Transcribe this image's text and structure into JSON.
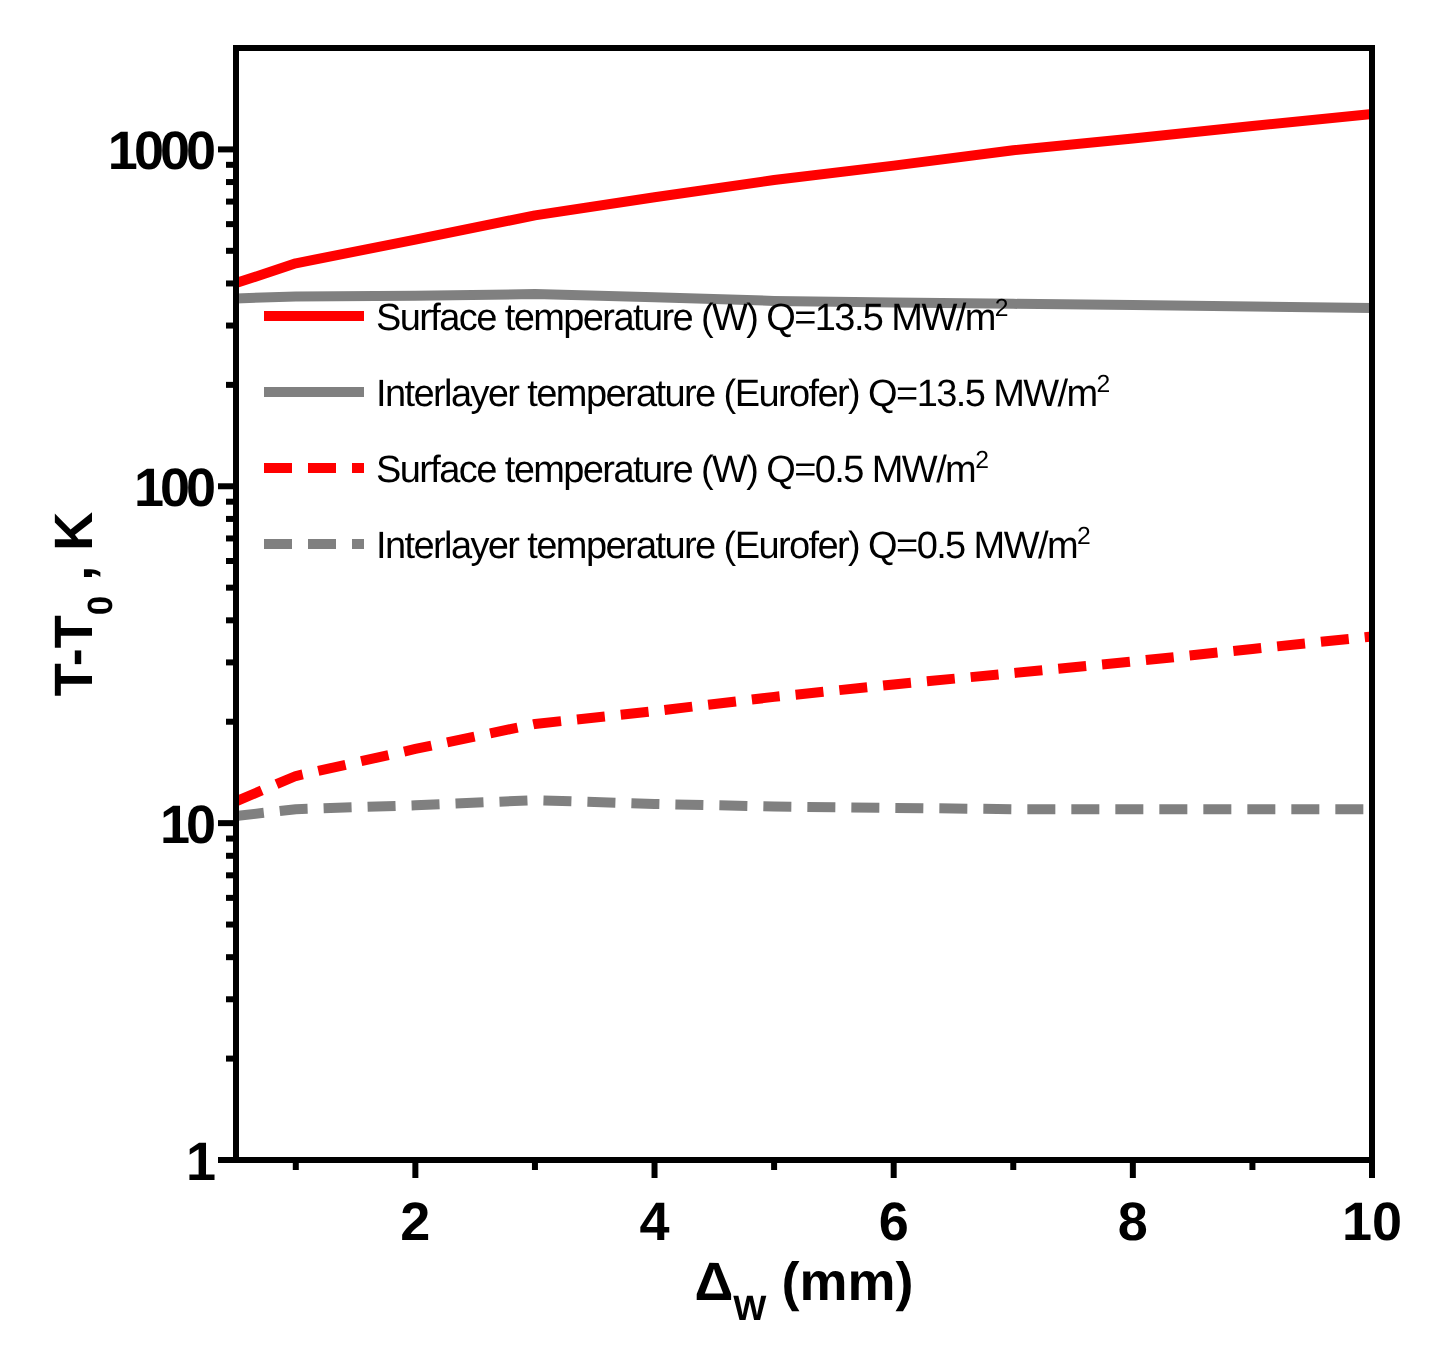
{
  "chart_data": {
    "type": "line",
    "xlabel": "Δ$_{W}$ (mm)",
    "ylabel": "T-T$_{0}$ , K",
    "log": "y",
    "legend": "top",
    "xlim": [
      0.5,
      10
    ],
    "xticks": [
      {
        "value": 1,
        "label": null
      },
      2,
      {
        "value": 3,
        "label": null
      },
      4,
      {
        "value": 5,
        "label": null
      },
      6,
      {
        "value": 7,
        "label": null
      },
      8,
      {
        "value": 9,
        "label": null
      },
      10
    ],
    "ylim": [
      1,
      2000
    ],
    "yticks": [
      1,
      {
        "value": 2,
        "label": null
      },
      {
        "value": 3,
        "label": null
      },
      {
        "value": 4,
        "label": null
      },
      {
        "value": 5,
        "label": null
      },
      {
        "value": 6,
        "label": null
      },
      {
        "value": 7,
        "label": null
      },
      {
        "value": 8,
        "label": null
      },
      {
        "value": 9,
        "label": null
      },
      10,
      {
        "value": 20,
        "label": null
      },
      {
        "value": 30,
        "label": null
      },
      {
        "value": 40,
        "label": null
      },
      {
        "value": 50,
        "label": null
      },
      {
        "value": 60,
        "label": null
      },
      {
        "value": 70,
        "label": null
      },
      {
        "value": 80,
        "label": null
      },
      {
        "value": 90,
        "label": null
      },
      100,
      {
        "value": 200,
        "label": null
      },
      {
        "value": 300,
        "label": null
      },
      {
        "value": 400,
        "label": null
      },
      {
        "value": 500,
        "label": null
      },
      {
        "value": 600,
        "label": null
      },
      {
        "value": 700,
        "label": null
      },
      {
        "value": 800,
        "label": null
      },
      {
        "value": 900,
        "label": null
      },
      1000
    ],
    "x": [
      0.5,
      1,
      2,
      3,
      4,
      5,
      6,
      7,
      8,
      9,
      10
    ],
    "series": [
      {
        "name": "Surface temperature (W) Q=13.5 MW/m$^{2}$",
        "color": "#ff0000",
        "line_style": "solid",
        "values": [
          401,
          459,
          540,
          637,
          721,
          811,
          895,
          994,
          1077,
          1174,
          1273
        ]
      },
      {
        "name": "Interlayer temperature (Eurofer) Q=13.5 MW/m$^{2}$",
        "color": "#808080",
        "line_style": "solid",
        "values": [
          361,
          366,
          368,
          372,
          364,
          355,
          351,
          348,
          345,
          342,
          338
        ]
      },
      {
        "name": "Surface temperature (W) Q=0.5 MW/m$^{2}$",
        "color": "#ff0000",
        "line_style": "dashed",
        "values": [
          11.6,
          13.8,
          16.6,
          19.7,
          21.5,
          23.7,
          25.8,
          27.9,
          30.2,
          32.9,
          35.8
        ]
      },
      {
        "name": "Interlayer temperature (Eurofer) Q=0.5 MW/m$^{2}$",
        "color": "#808080",
        "line_style": "dashed",
        "values": [
          10.5,
          11.0,
          11.3,
          11.7,
          11.4,
          11.2,
          11.1,
          11.0,
          11.0,
          11.0,
          11.0
        ]
      }
    ]
  }
}
